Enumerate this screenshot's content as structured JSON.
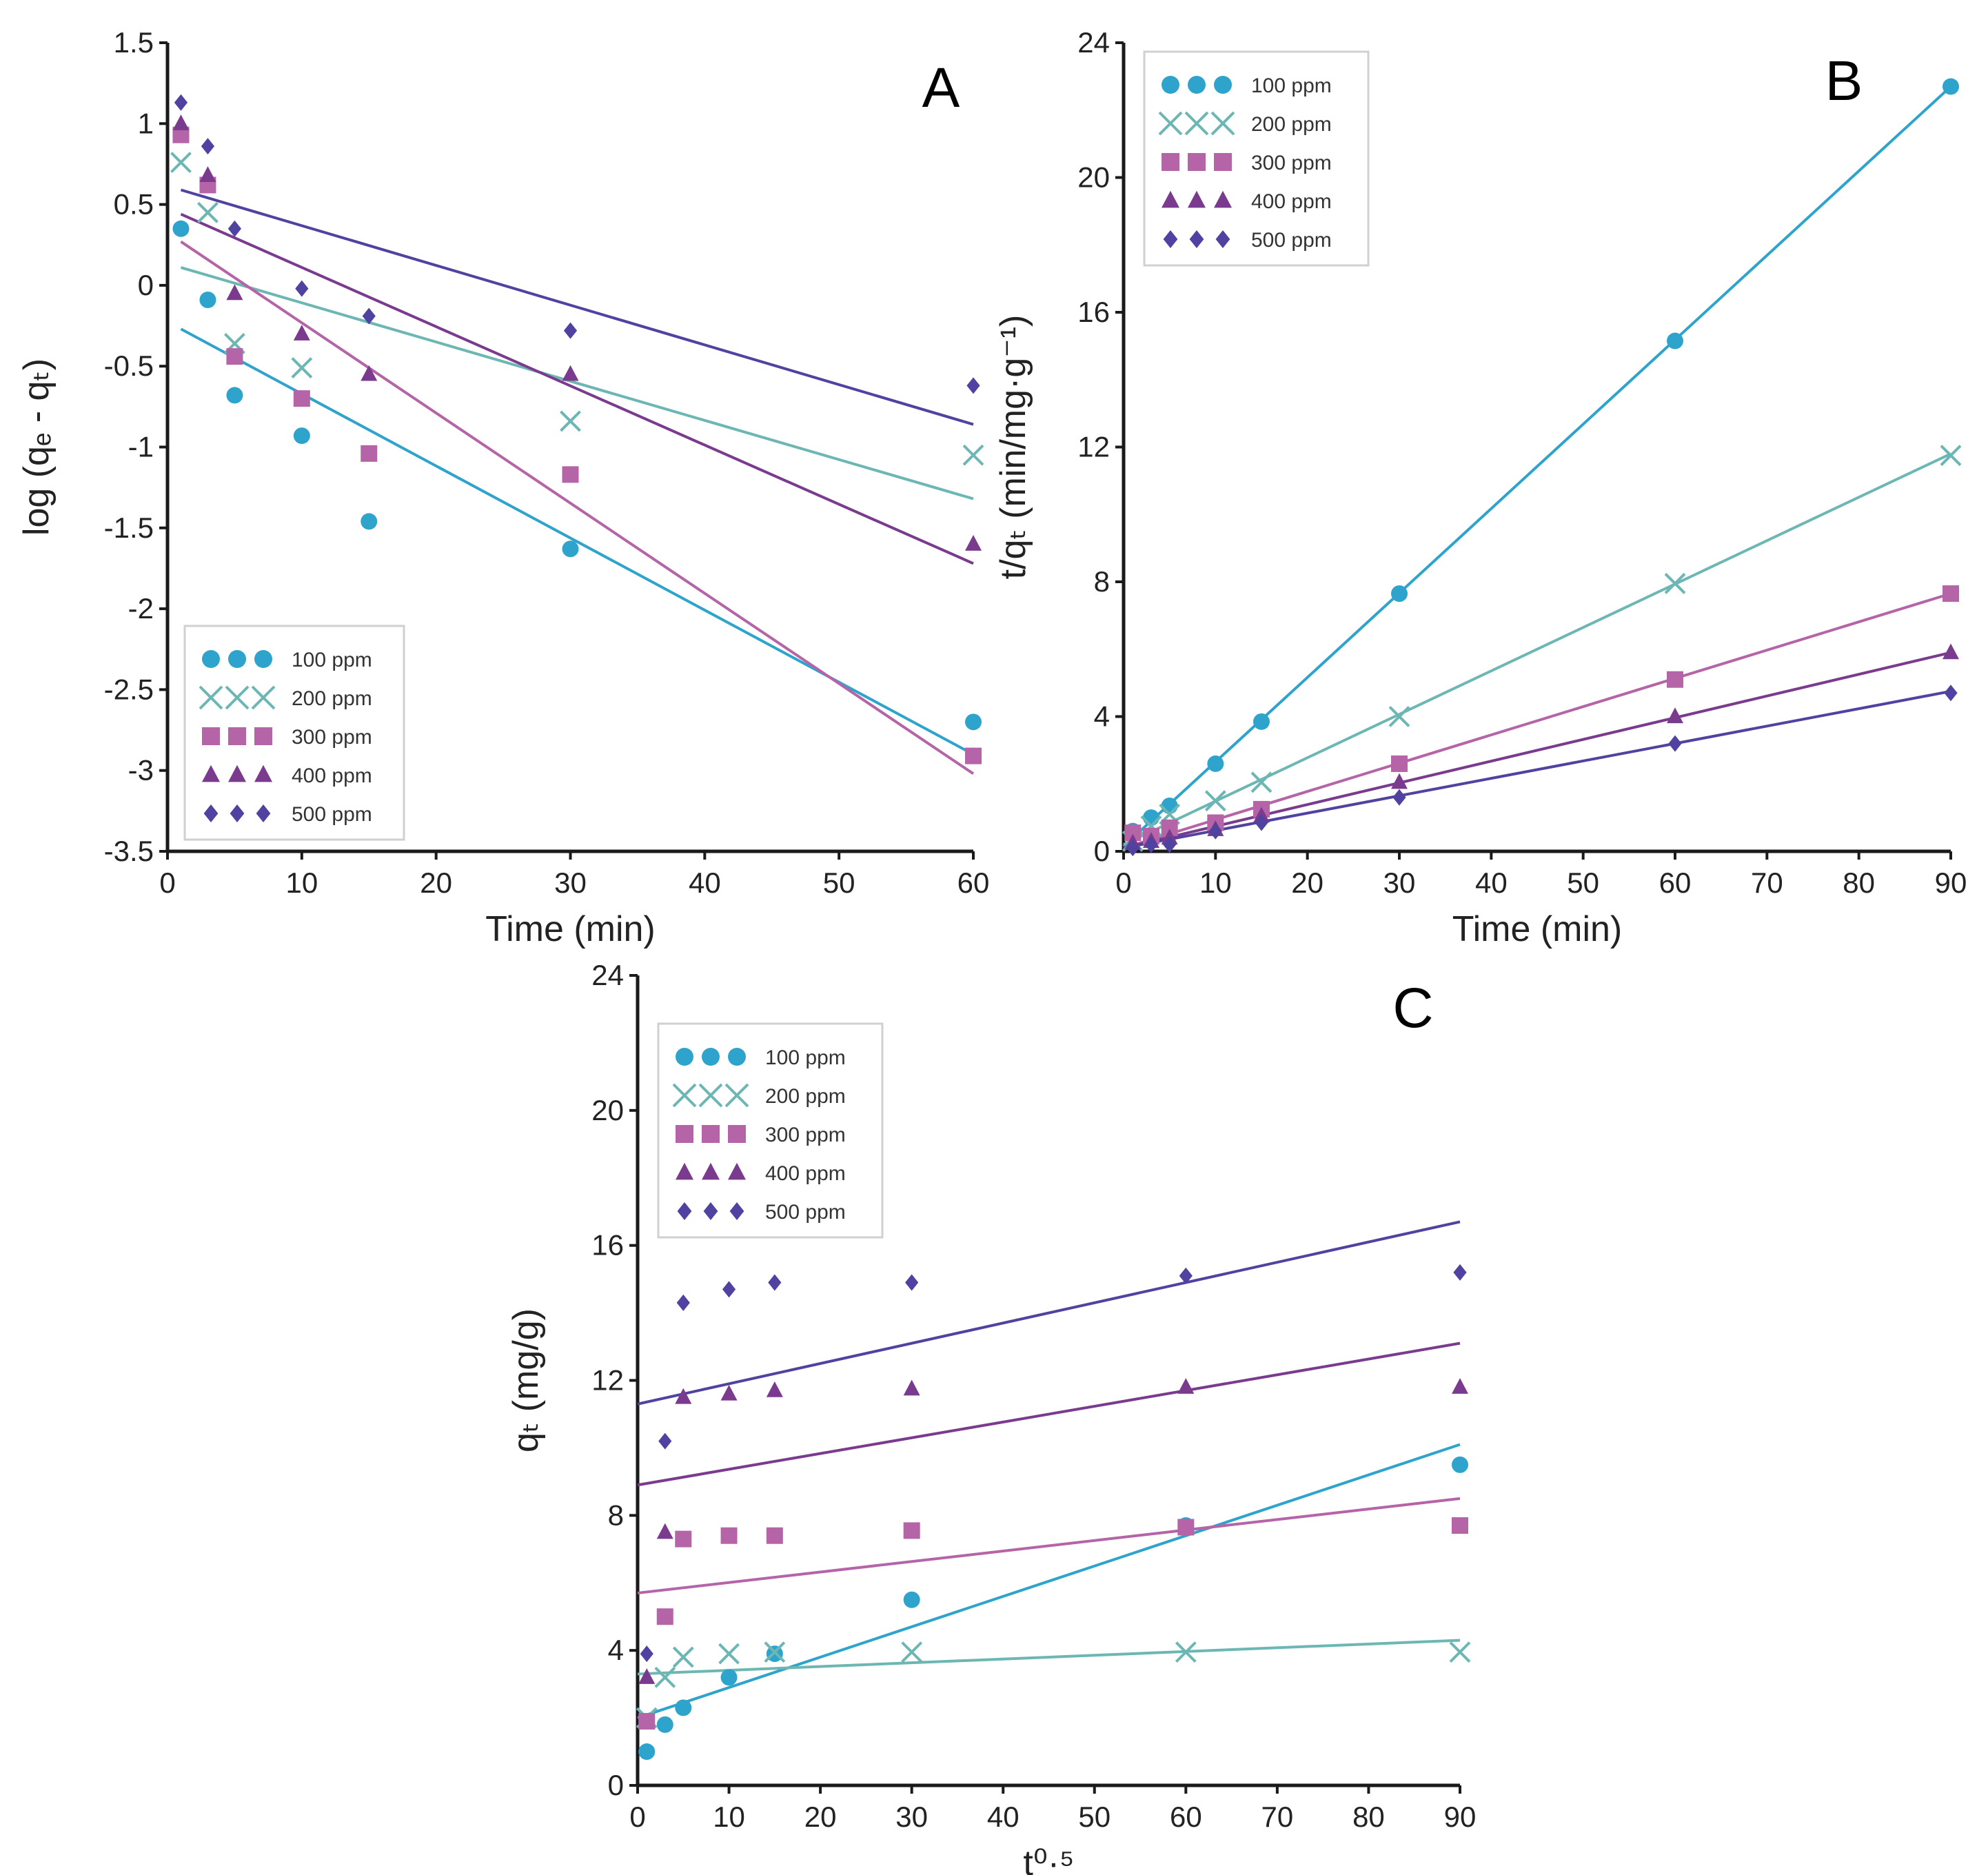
{
  "chart_data": [
    {
      "id": "A",
      "panel_label": "A",
      "type": "scatter",
      "xlabel": "Time (min)",
      "ylabel": "log (qₑ - qₜ)",
      "xlim": [
        0,
        60
      ],
      "ylim": [
        -3.5,
        1.5
      ],
      "xticks": [
        0,
        10,
        20,
        30,
        40,
        50,
        60
      ],
      "yticks": [
        -3.5,
        -3,
        -2.5,
        -2,
        -1.5,
        -1,
        -0.5,
        0,
        0.5,
        1,
        1.5
      ],
      "grid": false,
      "legend_position": "bottom-left",
      "series": [
        {
          "name": "100 ppm",
          "color": "#2ea3cc",
          "marker": "circle",
          "x": [
            1,
            3,
            5,
            10,
            15,
            30,
            60
          ],
          "y": [
            0.35,
            -0.09,
            -0.68,
            -0.93,
            -1.46,
            -1.63,
            -2.7
          ],
          "fit": [
            [
              1,
              -0.27
            ],
            [
              60,
              -2.9
            ]
          ]
        },
        {
          "name": "200 ppm",
          "color": "#6cb7b4",
          "marker": "x",
          "x": [
            1,
            3,
            5,
            10,
            30,
            60
          ],
          "y": [
            0.76,
            0.45,
            -0.36,
            -0.51,
            -0.84,
            -1.05
          ],
          "fit": [
            [
              1,
              0.11
            ],
            [
              60,
              -1.32
            ]
          ]
        },
        {
          "name": "300 ppm",
          "color": "#b564a8",
          "marker": "square",
          "x": [
            1,
            3,
            5,
            10,
            15,
            30,
            60
          ],
          "y": [
            0.93,
            0.62,
            -0.44,
            -0.7,
            -1.04,
            -1.17,
            -2.91
          ],
          "fit": [
            [
              1,
              0.27
            ],
            [
              60,
              -3.02
            ]
          ]
        },
        {
          "name": "400 ppm",
          "color": "#7a3a8e",
          "marker": "triangle",
          "x": [
            1,
            3,
            5,
            10,
            15,
            30,
            60
          ],
          "y": [
            1.0,
            0.68,
            -0.05,
            -0.3,
            -0.55,
            -0.55,
            -1.6
          ],
          "fit": [
            [
              1,
              0.44
            ],
            [
              60,
              -1.72
            ]
          ]
        },
        {
          "name": "500 ppm",
          "color": "#4f42a0",
          "marker": "diamond",
          "x": [
            1,
            3,
            5,
            10,
            15,
            30,
            60
          ],
          "y": [
            1.13,
            0.86,
            0.35,
            -0.02,
            -0.19,
            -0.28,
            -0.62
          ],
          "fit": [
            [
              1,
              0.59
            ],
            [
              60,
              -0.86
            ]
          ]
        }
      ]
    },
    {
      "id": "B",
      "panel_label": "B",
      "type": "scatter",
      "xlabel": "Time (min)",
      "ylabel": "t/qₜ (min/mg·g⁻¹)",
      "xlim": [
        0,
        90
      ],
      "ylim": [
        0,
        24
      ],
      "xticks": [
        0,
        10,
        20,
        30,
        40,
        50,
        60,
        70,
        80,
        90
      ],
      "yticks": [
        0,
        4,
        8,
        12,
        16,
        20,
        24
      ],
      "grid": false,
      "legend_position": "top-left",
      "series": [
        {
          "name": "100 ppm",
          "color": "#2ea3cc",
          "marker": "circle",
          "x": [
            1,
            3,
            5,
            10,
            15,
            30,
            60,
            90
          ],
          "y": [
            0.6,
            1.0,
            1.35,
            2.6,
            3.85,
            7.65,
            15.15,
            22.7
          ],
          "fit": [
            [
              0,
              0.15
            ],
            [
              90,
              22.7
            ]
          ]
        },
        {
          "name": "200 ppm",
          "color": "#6cb7b4",
          "marker": "x",
          "x": [
            1,
            3,
            5,
            10,
            15,
            30,
            60,
            90
          ],
          "y": [
            0.3,
            0.75,
            1.1,
            1.5,
            2.05,
            4.0,
            7.95,
            11.75
          ],
          "fit": [
            [
              0,
              0.2
            ],
            [
              90,
              11.8
            ]
          ]
        },
        {
          "name": "300 ppm",
          "color": "#b564a8",
          "marker": "square",
          "x": [
            1,
            3,
            5,
            10,
            15,
            30,
            60,
            90
          ],
          "y": [
            0.55,
            0.45,
            0.7,
            0.85,
            1.25,
            2.6,
            5.1,
            7.65
          ],
          "fit": [
            [
              0,
              0.1
            ],
            [
              90,
              7.65
            ]
          ]
        },
        {
          "name": "400 ppm",
          "color": "#7a3a8e",
          "marker": "triangle",
          "x": [
            1,
            3,
            5,
            10,
            15,
            30,
            60,
            90
          ],
          "y": [
            0.25,
            0.3,
            0.4,
            0.65,
            1.05,
            2.05,
            4.0,
            5.9
          ],
          "fit": [
            [
              0,
              0.1
            ],
            [
              90,
              5.9
            ]
          ]
        },
        {
          "name": "500 ppm",
          "color": "#4f42a0",
          "marker": "diamond",
          "x": [
            1,
            3,
            5,
            10,
            15,
            30,
            60,
            90
          ],
          "y": [
            0.1,
            0.2,
            0.2,
            0.6,
            0.85,
            1.6,
            3.2,
            4.7
          ],
          "fit": [
            [
              0,
              0.1
            ],
            [
              90,
              4.75
            ]
          ]
        }
      ]
    },
    {
      "id": "C",
      "panel_label": "C",
      "type": "scatter",
      "xlabel": "t⁰·⁵",
      "ylabel": "qₜ (mg/g)",
      "xlim": [
        0,
        90
      ],
      "ylim": [
        0,
        24
      ],
      "xticks": [
        0,
        10,
        20,
        30,
        40,
        50,
        60,
        70,
        80,
        90
      ],
      "yticks": [
        0,
        4,
        8,
        12,
        16,
        20,
        24
      ],
      "grid": false,
      "legend_position": "top-left",
      "series": [
        {
          "name": "100 ppm",
          "color": "#2ea3cc",
          "marker": "circle",
          "x": [
            1,
            3,
            5,
            10,
            15,
            30,
            60,
            90
          ],
          "y": [
            1.0,
            1.8,
            2.3,
            3.2,
            3.9,
            5.5,
            7.7,
            9.5
          ],
          "fit": [
            [
              0,
              2.0
            ],
            [
              90,
              10.1
            ]
          ]
        },
        {
          "name": "200 ppm",
          "color": "#6cb7b4",
          "marker": "x",
          "x": [
            1,
            3,
            5,
            10,
            15,
            30,
            60,
            90
          ],
          "y": [
            2.0,
            3.2,
            3.8,
            3.9,
            3.95,
            3.95,
            3.95,
            3.95
          ],
          "fit": [
            [
              0,
              3.3
            ],
            [
              90,
              4.3
            ]
          ]
        },
        {
          "name": "300 ppm",
          "color": "#b564a8",
          "marker": "square",
          "x": [
            1,
            3,
            5,
            10,
            15,
            30,
            60,
            90
          ],
          "y": [
            1.9,
            5.0,
            7.3,
            7.4,
            7.4,
            7.55,
            7.65,
            7.7
          ],
          "fit": [
            [
              0,
              5.7
            ],
            [
              90,
              8.5
            ]
          ]
        },
        {
          "name": "400 ppm",
          "color": "#7a3a8e",
          "marker": "triangle",
          "x": [
            1,
            3,
            5,
            10,
            15,
            30,
            60,
            90
          ],
          "y": [
            3.2,
            7.5,
            11.5,
            11.6,
            11.7,
            11.75,
            11.8,
            11.8
          ],
          "fit": [
            [
              0,
              8.9
            ],
            [
              90,
              13.1
            ]
          ]
        },
        {
          "name": "500 ppm",
          "color": "#4f42a0",
          "marker": "diamond",
          "x": [
            1,
            3,
            5,
            10,
            15,
            30,
            60,
            90
          ],
          "y": [
            3.9,
            10.2,
            14.3,
            14.7,
            14.9,
            14.9,
            15.1,
            15.2
          ],
          "fit": [
            [
              0,
              11.3
            ],
            [
              90,
              16.7
            ]
          ]
        }
      ]
    }
  ]
}
